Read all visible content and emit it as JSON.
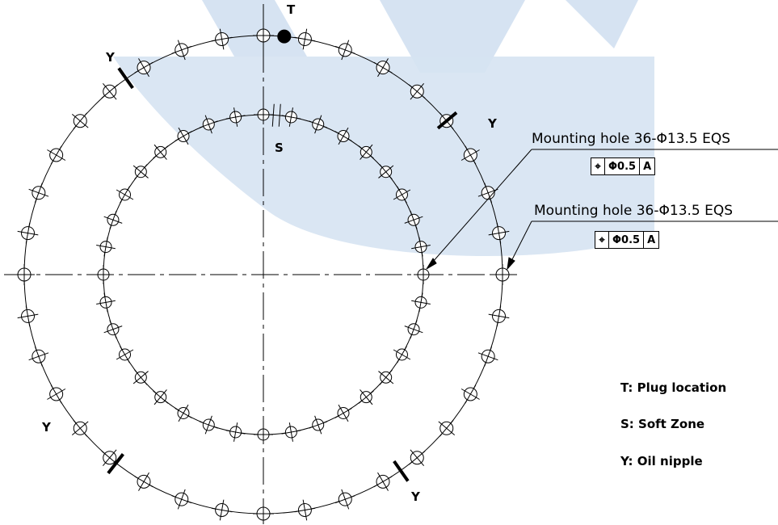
{
  "markers": {
    "plug": "T",
    "soft_zone": "S",
    "oil_nipple": "Y"
  },
  "callouts": [
    {
      "text": "Mounting hole 36-Φ13.5 EQS",
      "symbol": "⌖",
      "tolerance": "Φ0.5",
      "datum": "A"
    },
    {
      "text": "Mounting hole 36-Φ13.5 EQS",
      "symbol": "⌖",
      "tolerance": "Φ0.5",
      "datum": "A"
    }
  ],
  "legend": [
    "T: Plug location",
    "S: Soft Zone",
    "Y: Oil nipple"
  ],
  "colors": {
    "watermark": "#d6e3f2",
    "line": "#000000"
  }
}
